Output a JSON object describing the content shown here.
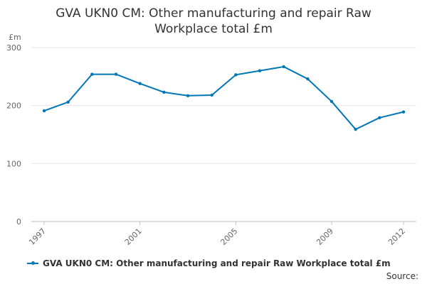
{
  "chart_data": {
    "type": "line",
    "title_line1": "GVA UKN0 CM: Other manufacturing and repair Raw",
    "title_line2": "Workplace total £m",
    "ylabel": "£m",
    "xlabel": "",
    "x": [
      1997,
      1998,
      1999,
      2000,
      2001,
      2002,
      2003,
      2004,
      2005,
      2006,
      2007,
      2008,
      2009,
      2010,
      2011,
      2012
    ],
    "x_tick_labels": [
      "1997",
      "2001",
      "2005",
      "2009",
      "2012"
    ],
    "y_ticks": [
      0,
      100,
      200,
      300
    ],
    "y_tick_labels": [
      "0",
      "100",
      "200",
      "300"
    ],
    "ylim": [
      0,
      300
    ],
    "grid": "horizontal",
    "legend_position": "bottom",
    "series": [
      {
        "name": "GVA UKN0 CM: Other manufacturing and repair Raw Workplace total £m",
        "color": "#0077b5",
        "values": [
          191,
          206,
          254,
          254,
          238,
          223,
          217,
          218,
          253,
          260,
          267,
          246,
          207,
          159,
          179,
          189
        ]
      }
    ]
  },
  "source_label": "Source:"
}
